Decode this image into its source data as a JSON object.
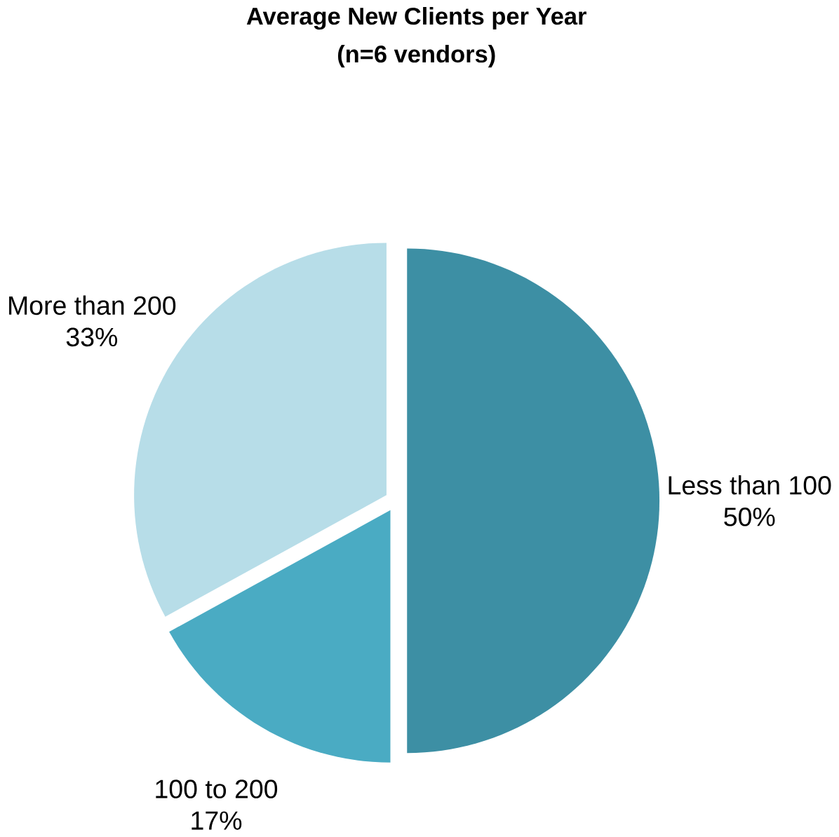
{
  "chart_data": {
    "type": "pie",
    "title": "Average New Clients per Year",
    "subtitle": "(n=6 vendors)",
    "categories": [
      "Less than 100",
      "100 to 200",
      "More than 200"
    ],
    "values": [
      50,
      17,
      33
    ],
    "value_labels": [
      "50%",
      "17%",
      "33%"
    ],
    "colors": [
      "#3d8fa4",
      "#4aabc3",
      "#b7dde8"
    ]
  }
}
